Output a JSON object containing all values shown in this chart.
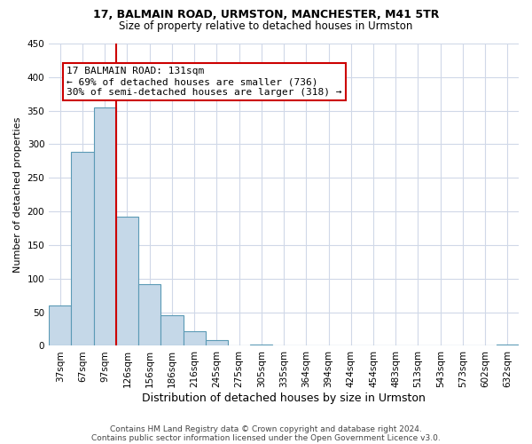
{
  "title1": "17, BALMAIN ROAD, URMSTON, MANCHESTER, M41 5TR",
  "title2": "Size of property relative to detached houses in Urmston",
  "xlabel": "Distribution of detached houses by size in Urmston",
  "ylabel": "Number of detached properties",
  "bin_labels": [
    "37sqm",
    "67sqm",
    "97sqm",
    "126sqm",
    "156sqm",
    "186sqm",
    "216sqm",
    "245sqm",
    "275sqm",
    "305sqm",
    "335sqm",
    "364sqm",
    "394sqm",
    "424sqm",
    "454sqm",
    "483sqm",
    "513sqm",
    "543sqm",
    "573sqm",
    "602sqm",
    "632sqm"
  ],
  "bar_values": [
    60,
    289,
    355,
    192,
    92,
    46,
    22,
    9,
    0,
    2,
    0,
    0,
    0,
    0,
    0,
    0,
    0,
    0,
    0,
    0,
    2
  ],
  "bar_color": "#c5d8e8",
  "bar_edge_color": "#5b9ab5",
  "vline_x": 3,
  "vline_color": "#cc0000",
  "annotation_box_line1": "17 BALMAIN ROAD: 131sqm",
  "annotation_box_line2": "← 69% of detached houses are smaller (736)",
  "annotation_box_line3": "30% of semi-detached houses are larger (318) →",
  "annotation_box_color": "#cc0000",
  "ylim": [
    0,
    450
  ],
  "yticks": [
    0,
    50,
    100,
    150,
    200,
    250,
    300,
    350,
    400,
    450
  ],
  "footer1": "Contains HM Land Registry data © Crown copyright and database right 2024.",
  "footer2": "Contains public sector information licensed under the Open Government Licence v3.0.",
  "bg_color": "#ffffff",
  "grid_color": "#d0d8e8",
  "title1_fontsize": 9,
  "title2_fontsize": 8.5,
  "ylabel_fontsize": 8,
  "xlabel_fontsize": 9,
  "tick_fontsize": 7.5,
  "footer_fontsize": 6.5,
  "ann_fontsize": 8
}
